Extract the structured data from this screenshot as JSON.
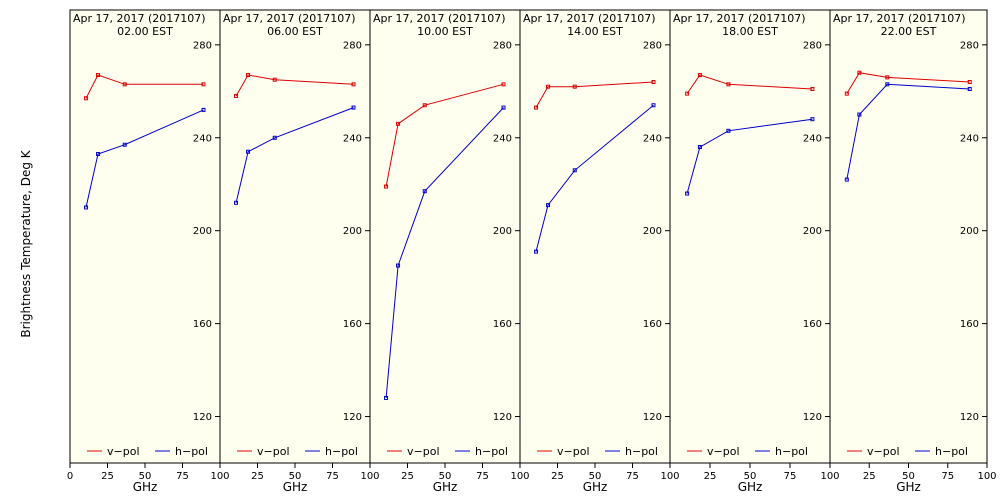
{
  "ylabel": "Brightness Temperature, Deg K",
  "xlabel": "GHz",
  "legend": {
    "vpol": "v−pol",
    "hpol": "h−pol"
  },
  "colors": {
    "vpol": "#dd0000",
    "hpol": "#0000cc",
    "panel_bg": "#fffff0",
    "axis": "#000000"
  },
  "chart_data": {
    "type": "line",
    "ylim": [
      100,
      295
    ],
    "xlim": [
      0,
      100
    ],
    "yticks": [
      "120",
      "160",
      "200",
      "240",
      "280"
    ],
    "xticks": [
      "0",
      "25",
      "50",
      "75",
      "100"
    ],
    "x": [
      10.7,
      18.7,
      36.5,
      89.0
    ],
    "legend_placement": "bottom",
    "grid": false,
    "panels": [
      {
        "title_line1": "Apr 17, 2017 (2017107)",
        "title_line2": "02.00 EST",
        "series": [
          {
            "name": "v−pol",
            "values": [
              257,
              267,
              263,
              263
            ]
          },
          {
            "name": "h−pol",
            "values": [
              210,
              233,
              237,
              252
            ]
          }
        ]
      },
      {
        "title_line1": "Apr 17, 2017 (2017107)",
        "title_line2": "06.00 EST",
        "series": [
          {
            "name": "v−pol",
            "values": [
              258,
              267,
              265,
              263
            ]
          },
          {
            "name": "h−pol",
            "values": [
              212,
              234,
              240,
              253
            ]
          }
        ]
      },
      {
        "title_line1": "Apr 17, 2017 (2017107)",
        "title_line2": "10.00 EST",
        "series": [
          {
            "name": "v−pol",
            "values": [
              219,
              246,
              254,
              263
            ]
          },
          {
            "name": "h−pol",
            "values": [
              128,
              185,
              217,
              253
            ]
          }
        ]
      },
      {
        "title_line1": "Apr 17, 2017 (2017107)",
        "title_line2": "14.00 EST",
        "series": [
          {
            "name": "v−pol",
            "values": [
              253,
              262,
              262,
              264
            ]
          },
          {
            "name": "h−pol",
            "values": [
              191,
              211,
              226,
              254
            ]
          }
        ]
      },
      {
        "title_line1": "Apr 17, 2017 (2017107)",
        "title_line2": "18.00 EST",
        "series": [
          {
            "name": "v−pol",
            "values": [
              259,
              267,
              263,
              261
            ]
          },
          {
            "name": "h−pol",
            "values": [
              216,
              236,
              243,
              248
            ]
          }
        ]
      },
      {
        "title_line1": "Apr 17, 2017 (2017107)",
        "title_line2": "22.00 EST",
        "series": [
          {
            "name": "v−pol",
            "values": [
              259,
              268,
              266,
              264
            ]
          },
          {
            "name": "h−pol",
            "values": [
              222,
              250,
              263,
              261
            ]
          }
        ]
      }
    ]
  }
}
